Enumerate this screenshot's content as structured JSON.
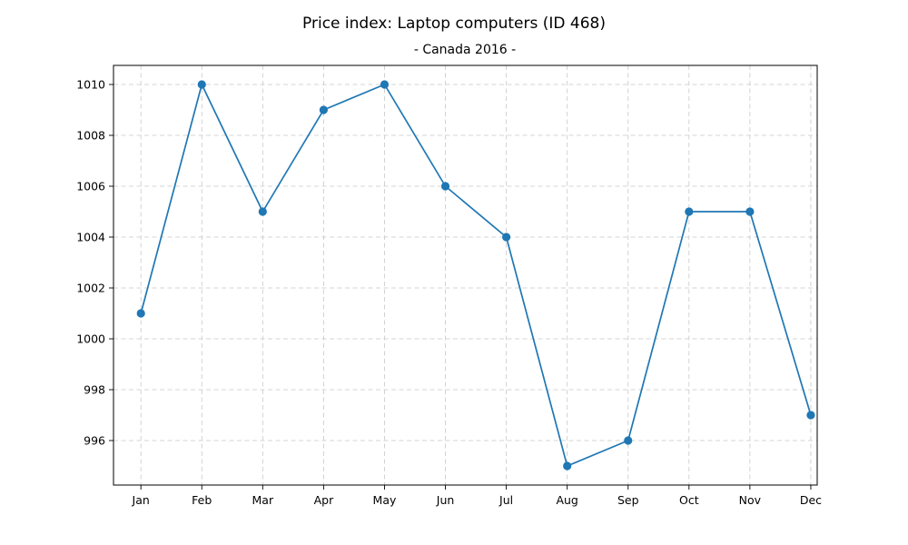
{
  "chart_data": {
    "type": "line",
    "title": "Price index: Laptop computers (ID 468)",
    "subtitle": "- Canada 2016 -",
    "categories": [
      "Jan",
      "Feb",
      "Mar",
      "Apr",
      "May",
      "Jun",
      "Jul",
      "Aug",
      "Sep",
      "Oct",
      "Nov",
      "Dec"
    ],
    "series": [
      {
        "values": [
          1001,
          1010,
          1005,
          1009,
          1010,
          1006,
          1004,
          995,
          996,
          1005,
          1005,
          997
        ],
        "color": "#1f77b4"
      }
    ],
    "xlabel": "",
    "ylabel": "",
    "ylim": [
      994.25,
      1010.75
    ],
    "yticks": [
      996,
      998,
      1000,
      1002,
      1004,
      1006,
      1008,
      1010
    ],
    "grid": true,
    "marker": "circle"
  }
}
